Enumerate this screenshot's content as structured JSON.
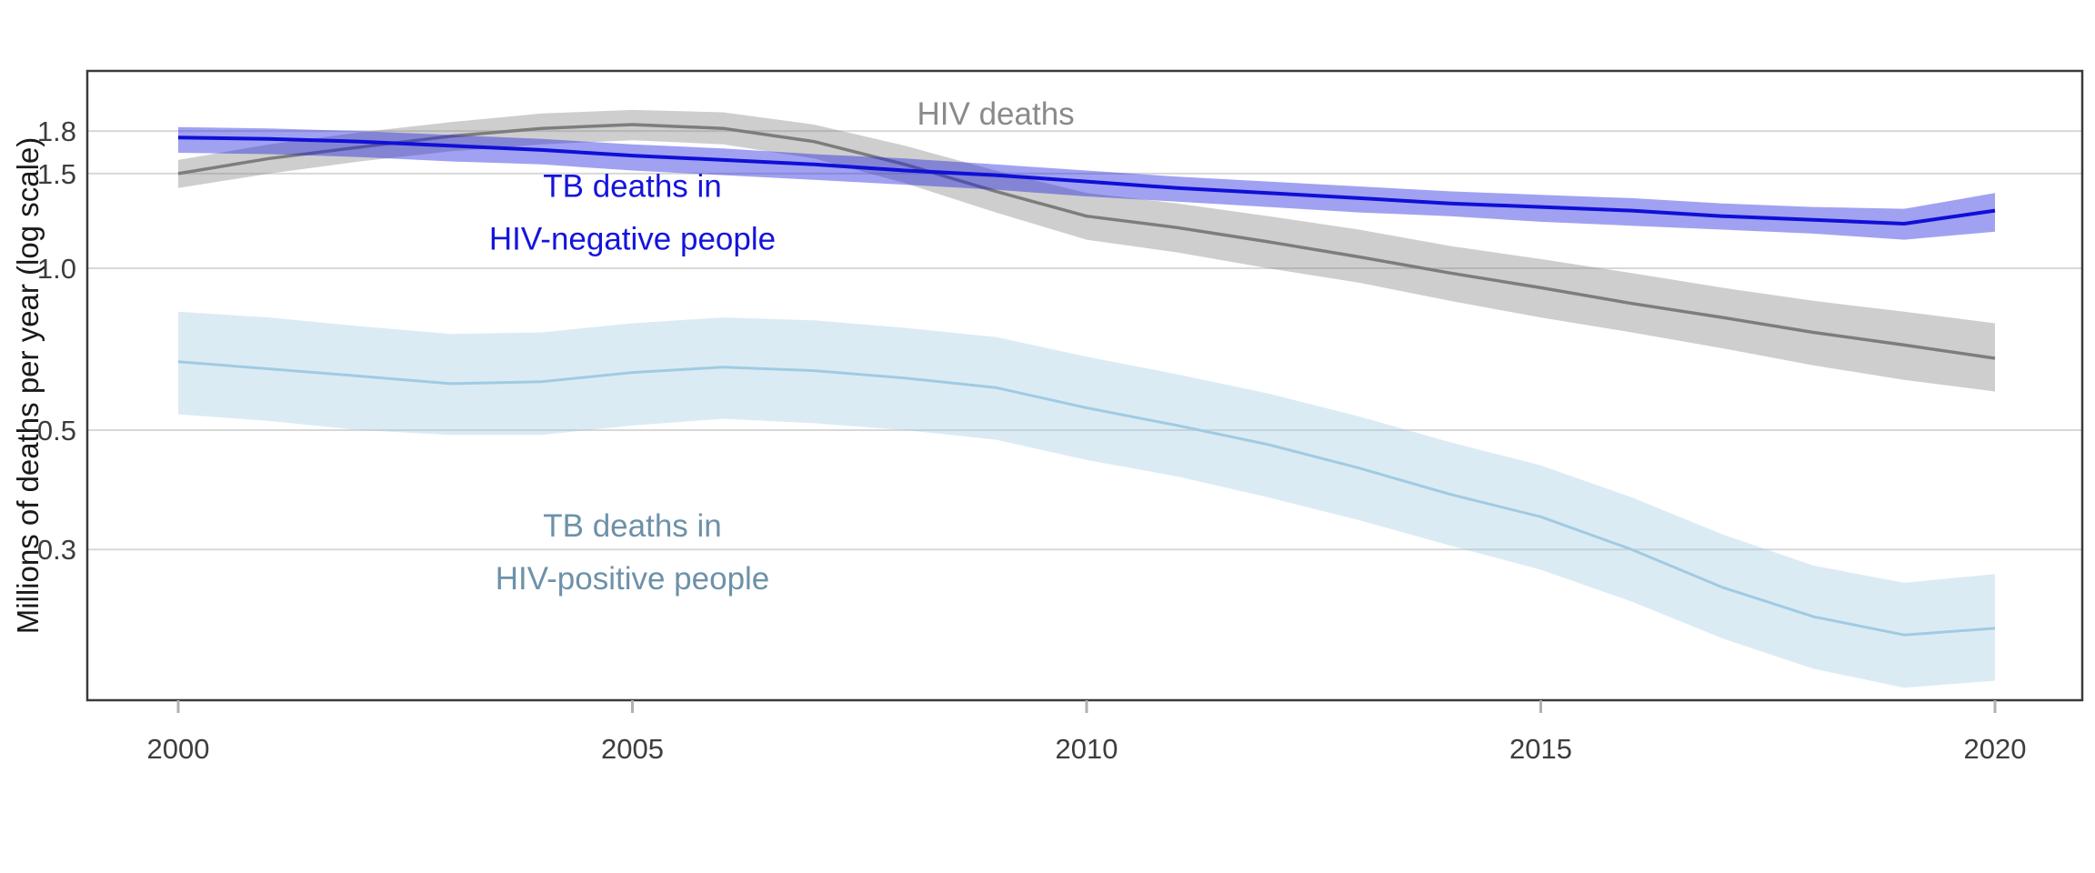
{
  "figure": {
    "background": "#ffffff",
    "y_axis_title": "Millions of deaths per year (log scale)",
    "x_axis_title": ""
  },
  "chart_data": {
    "type": "line",
    "y_scale": "log10",
    "xlabel": "",
    "ylabel": "Millions of deaths per year (log scale)",
    "grid": "horizontal gridlines only, light gray, full panel border",
    "legend": "direct text labels placed on chart",
    "x": [
      2000,
      2001,
      2002,
      2003,
      2004,
      2005,
      2006,
      2007,
      2008,
      2009,
      2010,
      2011,
      2012,
      2013,
      2014,
      2015,
      2016,
      2017,
      2018,
      2019,
      2020
    ],
    "x_ticks": [
      2000,
      2005,
      2010,
      2015,
      2020
    ],
    "y_ticks": [
      {
        "value": 1.8,
        "label": "1.8"
      },
      {
        "value": 1.5,
        "label": "1.5"
      },
      {
        "value": 1.0,
        "label": "1.0"
      },
      {
        "value": 0.5,
        "label": "0.5"
      },
      {
        "value": 0.3,
        "label": "0.3"
      }
    ],
    "x_range": [
      1999.0,
      2020.95
    ],
    "y_range_values": [
      0.155,
      2.33
    ],
    "series": [
      {
        "id": "hiv-deaths",
        "name": "HIV deaths",
        "color": "#7d7d7d",
        "band_color": "rgba(125,125,125,0.38)",
        "line_width": 3.5,
        "values": [
          1.5,
          1.6,
          1.68,
          1.76,
          1.82,
          1.85,
          1.82,
          1.72,
          1.56,
          1.39,
          1.25,
          1.19,
          1.12,
          1.05,
          0.98,
          0.92,
          0.86,
          0.81,
          0.76,
          0.72,
          0.68
        ],
        "upper": [
          1.59,
          1.7,
          1.79,
          1.87,
          1.94,
          1.97,
          1.95,
          1.85,
          1.69,
          1.52,
          1.38,
          1.32,
          1.25,
          1.18,
          1.1,
          1.04,
          0.98,
          0.92,
          0.87,
          0.83,
          0.79
        ],
        "lower": [
          1.41,
          1.5,
          1.58,
          1.65,
          1.7,
          1.73,
          1.7,
          1.6,
          1.44,
          1.27,
          1.13,
          1.07,
          1.0,
          0.94,
          0.87,
          0.81,
          0.76,
          0.71,
          0.66,
          0.62,
          0.59
        ]
      },
      {
        "id": "tb-deaths-hiv-negative",
        "name": "TB deaths in HIV-negative people",
        "color": "#0f0fd6",
        "band_color": "rgba(30,30,225,0.42)",
        "line_width": 4,
        "values": [
          1.75,
          1.74,
          1.72,
          1.69,
          1.66,
          1.62,
          1.59,
          1.56,
          1.52,
          1.49,
          1.45,
          1.41,
          1.38,
          1.35,
          1.32,
          1.3,
          1.28,
          1.25,
          1.23,
          1.21,
          1.28
        ],
        "upper": [
          1.83,
          1.82,
          1.8,
          1.77,
          1.74,
          1.7,
          1.67,
          1.63,
          1.6,
          1.56,
          1.52,
          1.48,
          1.45,
          1.42,
          1.39,
          1.37,
          1.35,
          1.32,
          1.3,
          1.29,
          1.38
        ],
        "lower": [
          1.64,
          1.63,
          1.61,
          1.58,
          1.56,
          1.52,
          1.49,
          1.46,
          1.43,
          1.4,
          1.36,
          1.33,
          1.3,
          1.27,
          1.25,
          1.22,
          1.2,
          1.18,
          1.16,
          1.13,
          1.17
        ]
      },
      {
        "id": "tb-deaths-hiv-positive",
        "name": "TB deaths in HIV-positive people",
        "color": "#a0cbe2",
        "band_color": "rgba(160,203,226,0.38)",
        "line_width": 3,
        "values": [
          0.67,
          0.65,
          0.63,
          0.61,
          0.615,
          0.64,
          0.655,
          0.645,
          0.625,
          0.6,
          0.55,
          0.51,
          0.47,
          0.425,
          0.38,
          0.345,
          0.3,
          0.255,
          0.225,
          0.208,
          0.214
        ],
        "upper": [
          0.83,
          0.81,
          0.78,
          0.755,
          0.76,
          0.79,
          0.81,
          0.8,
          0.775,
          0.745,
          0.685,
          0.635,
          0.585,
          0.53,
          0.475,
          0.43,
          0.375,
          0.32,
          0.28,
          0.26,
          0.27
        ],
        "lower": [
          0.535,
          0.52,
          0.5,
          0.49,
          0.49,
          0.51,
          0.525,
          0.515,
          0.5,
          0.48,
          0.44,
          0.41,
          0.375,
          0.34,
          0.305,
          0.275,
          0.24,
          0.205,
          0.18,
          0.166,
          0.171
        ]
      }
    ],
    "annotations": [
      {
        "id": "label-hiv-deaths",
        "lines": [
          "HIV deaths"
        ],
        "x": 2009.0,
        "y": 1.94,
        "color": "#8a8a8a"
      },
      {
        "id": "label-tb-hiv-negative",
        "lines": [
          "TB deaths in",
          "HIV-negative people"
        ],
        "x": 2005.0,
        "y": 1.27,
        "color": "#1414dd"
      },
      {
        "id": "label-tb-hiv-positive",
        "lines": [
          "TB deaths in",
          "HIV-positive people"
        ],
        "x": 2005.0,
        "y": 0.297,
        "color": "#6d91a9"
      }
    ]
  }
}
